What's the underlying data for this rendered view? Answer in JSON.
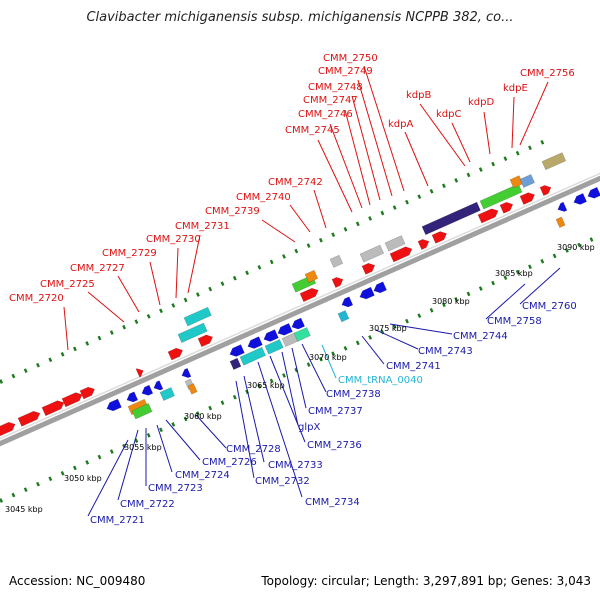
{
  "title": "Clavibacter michiganensis subsp. michiganensis NCPPB 382, co...",
  "accession_text": "Accession: NC_009480",
  "summary_text": "Topology: circular; Length: 3,297,891 bp; Genes: 3,043",
  "colors": {
    "backbone": "#a0a0a0",
    "tick": "#1e7a1e",
    "forward_label": "#dd1111",
    "reverse_label": "#1a1aa8",
    "rna_label": "#22b5d4"
  },
  "scale_labels": [
    "3045 kbp",
    "3050 kbp",
    "3055 kbp",
    "3060 kbp",
    "3065 kbp",
    "3070 kbp",
    "3075 kbp",
    "3080 kbp",
    "3085 kbp",
    "3090 kbp"
  ],
  "forward_genes": [
    "CMM_2720",
    "CMM_2725",
    "CMM_2727",
    "CMM_2729",
    "CMM_2730",
    "CMM_2731",
    "CMM_2739",
    "CMM_2740",
    "CMM_2742",
    "CMM_2745",
    "CMM_2746",
    "CMM_2747",
    "CMM_2748",
    "CMM_2749",
    "CMM_2750",
    "kdpA",
    "kdpB",
    "kdpC",
    "kdpD",
    "kdpE",
    "CMM_2756"
  ],
  "reverse_genes": [
    "CMM_2721",
    "CMM_2722",
    "CMM_2723",
    "CMM_2724",
    "CMM_2726",
    "CMM_2728",
    "CMM_2732",
    "CMM_2733",
    "CMM_2734",
    "CMM_2736",
    "glpX",
    "CMM_2737",
    "CMM_2738",
    "CMM_2741",
    "CMM_2743",
    "CMM_2744",
    "CMM_2758",
    "CMM_2760"
  ],
  "rna_genes": [
    "CMM_tRNA_0040"
  ]
}
